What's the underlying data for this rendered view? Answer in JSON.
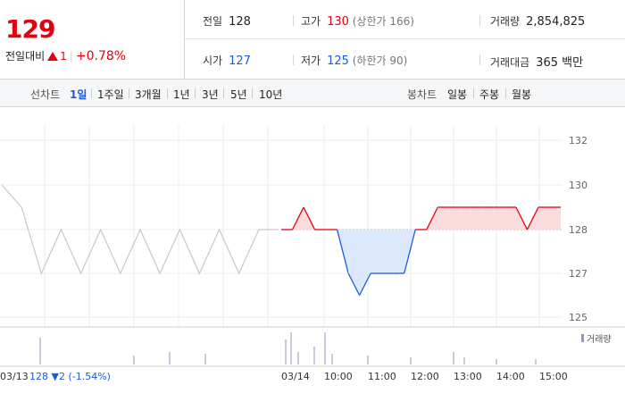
{
  "quote": {
    "price": "129",
    "change_label": "전일대비",
    "change_value": "1",
    "change_pct": "+0.78%",
    "prev_close_label": "전일",
    "prev_close": "128",
    "high_label": "고가",
    "high": "130",
    "upper_limit": "(상한가 166)",
    "volume_label": "거래량",
    "volume": "2,854,825",
    "open_label": "시가",
    "open": "127",
    "low_label": "저가",
    "low": "125",
    "lower_limit": "(하한가 90)",
    "amount_label": "거래대금",
    "amount": "365 백만"
  },
  "tabs": {
    "line_label": "선차트",
    "line_items": [
      "1일",
      "1주일",
      "3개월",
      "1년",
      "3년",
      "5년",
      "10년"
    ],
    "line_active": "1일",
    "candle_label": "봉차트",
    "candle_items": [
      "일봉",
      "주봉",
      "월봉"
    ]
  },
  "chart_data": {
    "type": "line",
    "ylim": [
      125,
      132
    ],
    "yticks": [
      132,
      130,
      128,
      127,
      125
    ],
    "reference_price": 128,
    "prev_day": {
      "date": "03/13",
      "close": "128",
      "change": "2",
      "change_pct": "(-1.54%)",
      "values": [
        130,
        129,
        127,
        128,
        127,
        128,
        127,
        128,
        127,
        128,
        127,
        128,
        127,
        128,
        128
      ]
    },
    "today": {
      "date": "03/14",
      "x": [
        "09:00",
        "09:10",
        "09:20",
        "09:30",
        "09:40",
        "09:50",
        "10:00",
        "10:10",
        "10:20",
        "10:30",
        "10:40",
        "10:50",
        "11:00",
        "11:10",
        "11:20",
        "11:30",
        "11:40",
        "11:50",
        "12:00",
        "12:30",
        "13:00",
        "13:30",
        "14:00",
        "14:30",
        "15:00",
        "15:20"
      ],
      "values": [
        128,
        128,
        129,
        128,
        128,
        128,
        127,
        126,
        127,
        127,
        127,
        127,
        128,
        128,
        129,
        129,
        129,
        129,
        129,
        129,
        129,
        129,
        128,
        129,
        129,
        129
      ]
    },
    "xticks": [
      "03/13",
      "03/14",
      "10:00",
      "11:00",
      "12:00",
      "13:00",
      "14:00",
      "15:00"
    ],
    "volume_legend": "거래량",
    "colors": {
      "up": "#e5000f",
      "down": "#1e5bd6",
      "prev": "#c8c8c8",
      "volume": "#9c8fc9"
    }
  }
}
